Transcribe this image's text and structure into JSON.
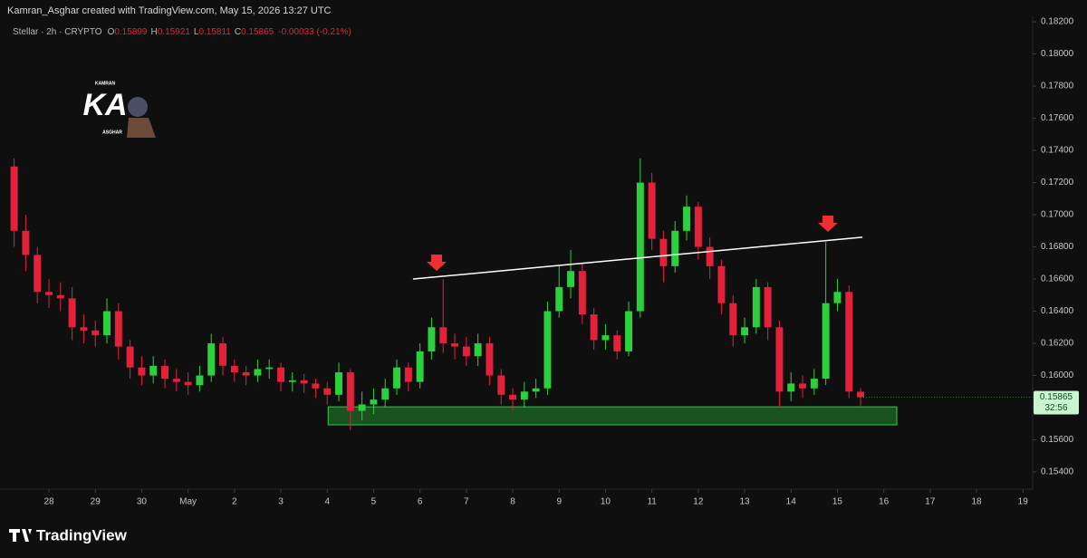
{
  "header": "Kamran_Asghar created with TradingView.com, May 15, 2026 13:27 UTC",
  "logo": {
    "top": "KAMRAN",
    "main": "KA",
    "bottom": "ASGHAR"
  },
  "footer": "TradingView",
  "chart_data": {
    "type": "candlestick",
    "symbol": "Stellar · 2h · CRYPTO",
    "legend_labels": [
      "O",
      "H",
      "L",
      "C"
    ],
    "change_label": "-0.00033 (-0.21%)",
    "countdown": "32:56",
    "up_color": "#2bd13c",
    "down_color": "#e3213a",
    "x": [
      -0.75,
      -0.5,
      -0.25,
      0,
      0.25,
      0.5,
      0.75,
      1,
      1.25,
      1.5,
      1.75,
      2,
      2.25,
      2.5,
      2.75,
      3,
      3.25,
      3.5,
      3.75,
      4,
      4.25,
      4.5,
      4.75,
      5,
      5.25,
      5.5,
      5.75,
      6,
      6.25,
      6.5,
      6.75,
      7,
      7.25,
      7.5,
      7.75,
      8,
      8.25,
      8.5,
      8.75,
      9,
      9.25,
      9.5,
      9.75,
      10,
      10.25,
      10.5,
      10.75,
      11,
      11.25,
      11.5,
      11.75,
      12,
      12.25,
      12.5,
      12.75,
      13,
      13.25,
      13.5,
      13.75,
      14,
      14.25,
      14.5,
      14.75,
      15,
      15.25,
      15.5,
      15.75,
      16,
      16.25,
      16.5,
      16.75,
      17,
      17.25,
      17.5
    ],
    "open": [
      0.173,
      0.169,
      0.1675,
      0.1652,
      0.165,
      0.1648,
      0.163,
      0.1628,
      0.1625,
      0.164,
      0.1618,
      0.1605,
      0.16,
      0.1606,
      0.1598,
      0.1596,
      0.1594,
      0.16,
      0.162,
      0.1606,
      0.1602,
      0.16,
      0.1604,
      0.1605,
      0.1596,
      0.1597,
      0.1595,
      0.1592,
      0.1588,
      0.1602,
      0.1578,
      0.1582,
      0.1585,
      0.1592,
      0.1605,
      0.1596,
      0.1615,
      0.163,
      0.162,
      0.1618,
      0.1612,
      0.162,
      0.16,
      0.1588,
      0.1585,
      0.159,
      0.1592,
      0.164,
      0.1655,
      0.1665,
      0.1638,
      0.1622,
      0.1625,
      0.1615,
      0.164,
      0.172,
      0.1685,
      0.1668,
      0.169,
      0.1705,
      0.168,
      0.1668,
      0.1645,
      0.1625,
      0.163,
      0.1655,
      0.163,
      0.159,
      0.1595,
      0.1592,
      0.1598,
      0.1645,
      0.1652,
      0.15899
    ],
    "high": [
      0.1735,
      0.17,
      0.168,
      0.166,
      0.1658,
      0.1655,
      0.1638,
      0.1634,
      0.1648,
      0.1645,
      0.1622,
      0.1612,
      0.1612,
      0.161,
      0.1604,
      0.1602,
      0.1606,
      0.1626,
      0.1624,
      0.161,
      0.1606,
      0.161,
      0.161,
      0.1608,
      0.1602,
      0.1601,
      0.1598,
      0.1596,
      0.1608,
      0.1604,
      0.159,
      0.1592,
      0.1598,
      0.161,
      0.1608,
      0.162,
      0.1636,
      0.166,
      0.1626,
      0.1624,
      0.1626,
      0.1624,
      0.1604,
      0.1592,
      0.1596,
      0.1598,
      0.1646,
      0.1668,
      0.1678,
      0.167,
      0.1642,
      0.1632,
      0.1628,
      0.1646,
      0.1735,
      0.1726,
      0.169,
      0.1696,
      0.1712,
      0.1708,
      0.1686,
      0.1672,
      0.165,
      0.1636,
      0.166,
      0.1658,
      0.1634,
      0.1602,
      0.16,
      0.1604,
      0.1683,
      0.166,
      0.1656,
      0.15921
    ],
    "low": [
      0.168,
      0.1665,
      0.1645,
      0.1642,
      0.164,
      0.1622,
      0.162,
      0.1618,
      0.162,
      0.161,
      0.1598,
      0.1594,
      0.1595,
      0.1592,
      0.159,
      0.1588,
      0.159,
      0.1596,
      0.16,
      0.1596,
      0.1594,
      0.1596,
      0.1598,
      0.159,
      0.159,
      0.1589,
      0.1586,
      0.1582,
      0.1584,
      0.1566,
      0.1572,
      0.1576,
      0.158,
      0.1588,
      0.159,
      0.1592,
      0.161,
      0.1614,
      0.161,
      0.1606,
      0.1606,
      0.1594,
      0.1582,
      0.1578,
      0.158,
      0.1586,
      0.1588,
      0.1636,
      0.1648,
      0.1632,
      0.1616,
      0.1616,
      0.161,
      0.1612,
      0.1636,
      0.1678,
      0.1658,
      0.1664,
      0.1684,
      0.1672,
      0.166,
      0.1638,
      0.1618,
      0.162,
      0.1626,
      0.1622,
      0.158,
      0.1584,
      0.1586,
      0.1588,
      0.1594,
      0.164,
      0.1586,
      0.15811
    ],
    "close": [
      0.169,
      0.1675,
      0.1652,
      0.165,
      0.1648,
      0.163,
      0.1628,
      0.1625,
      0.164,
      0.1618,
      0.1605,
      0.16,
      0.1606,
      0.1598,
      0.1596,
      0.1594,
      0.16,
      0.162,
      0.1606,
      0.1602,
      0.16,
      0.1604,
      0.1605,
      0.1596,
      0.1597,
      0.1595,
      0.1592,
      0.1588,
      0.1602,
      0.1578,
      0.1582,
      0.1585,
      0.1592,
      0.1605,
      0.1596,
      0.1615,
      0.163,
      0.162,
      0.1618,
      0.1612,
      0.162,
      0.16,
      0.1588,
      0.1585,
      0.159,
      0.1592,
      0.164,
      0.1655,
      0.1665,
      0.1638,
      0.1622,
      0.1625,
      0.1615,
      0.164,
      0.172,
      0.1685,
      0.1668,
      0.169,
      0.1705,
      0.168,
      0.1668,
      0.1645,
      0.1625,
      0.163,
      0.1655,
      0.163,
      0.159,
      0.1595,
      0.1592,
      0.1598,
      0.1645,
      0.1652,
      0.159,
      0.15865
    ],
    "trendline": {
      "x": [
        7.85,
        17.54
      ],
      "y": [
        0.166,
        0.1686
      ],
      "color": "#ffffff"
    },
    "zone": {
      "x": [
        6.02,
        18.28
      ],
      "y": [
        0.15805,
        0.15693
      ],
      "color": "#2bd13c"
    },
    "xlim": [
      -1.055,
      21.21
    ],
    "ylim": [
      0.15293,
      0.18223
    ],
    "xticks": [
      {
        "value": 0,
        "label": "28"
      },
      {
        "value": 1,
        "label": "29"
      },
      {
        "value": 2,
        "label": "30"
      },
      {
        "value": 3,
        "label": "May"
      },
      {
        "value": 4,
        "label": "2"
      },
      {
        "value": 5,
        "label": "3"
      },
      {
        "value": 6,
        "label": "4"
      },
      {
        "value": 7,
        "label": "5"
      },
      {
        "value": 8,
        "label": "6"
      },
      {
        "value": 9,
        "label": "7"
      },
      {
        "value": 10,
        "label": "8"
      },
      {
        "value": 11,
        "label": "9"
      },
      {
        "value": 12,
        "label": "10"
      },
      {
        "value": 13,
        "label": "11"
      },
      {
        "value": 14,
        "label": "12"
      },
      {
        "value": 15,
        "label": "13"
      },
      {
        "value": 16,
        "label": "14"
      },
      {
        "value": 17,
        "label": "15"
      },
      {
        "value": 18,
        "label": "16"
      },
      {
        "value": 19,
        "label": "17"
      },
      {
        "value": 20,
        "label": "18"
      },
      {
        "value": 21,
        "label": "19"
      }
    ],
    "yticks": [
      {
        "value": 0.154,
        "label": "0.15400"
      },
      {
        "value": 0.156,
        "label": "0.15600"
      },
      {
        "value": 0.158,
        "label": "0.15800"
      },
      {
        "value": 0.16,
        "label": "0.16000"
      },
      {
        "value": 0.162,
        "label": "0.16200"
      },
      {
        "value": 0.164,
        "label": "0.16400"
      },
      {
        "value": 0.166,
        "label": "0.16600"
      },
      {
        "value": 0.168,
        "label": "0.16800"
      },
      {
        "value": 0.17,
        "label": "0.17000"
      },
      {
        "value": 0.172,
        "label": "0.17200"
      },
      {
        "value": 0.174,
        "label": "0.17400"
      },
      {
        "value": 0.176,
        "label": "0.17600"
      },
      {
        "value": 0.178,
        "label": "0.17800"
      },
      {
        "value": 0.18,
        "label": "0.18000"
      },
      {
        "value": 0.182,
        "label": "0.18200"
      }
    ]
  }
}
